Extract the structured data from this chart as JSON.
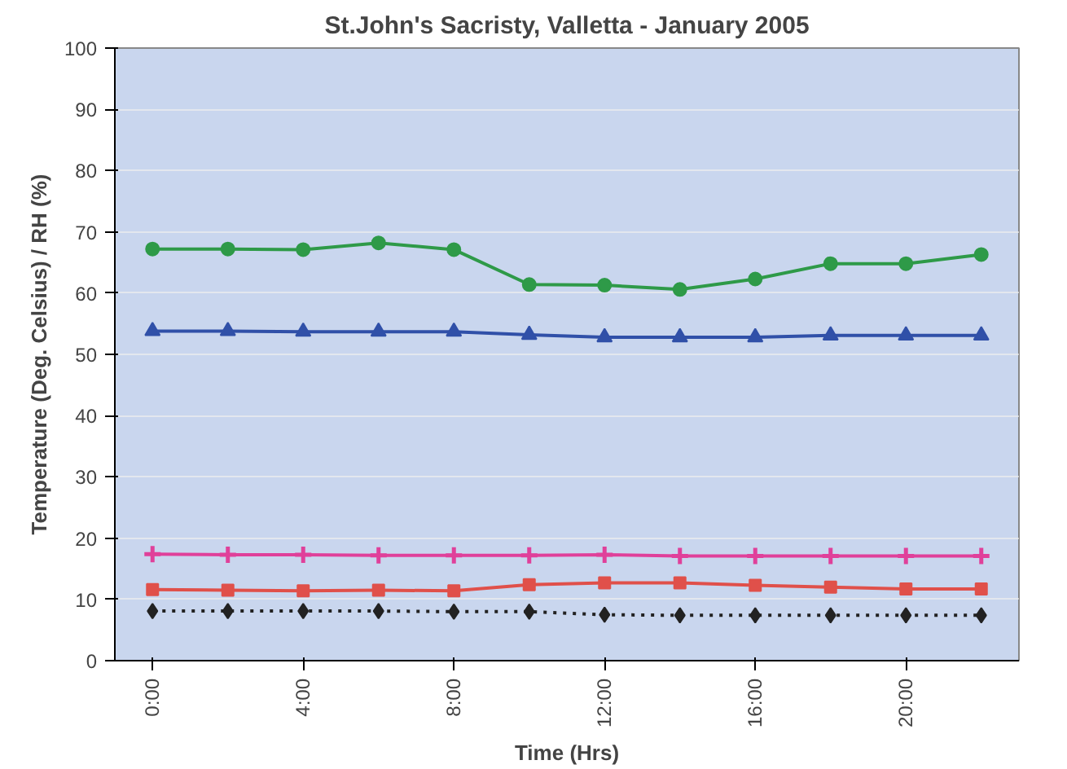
{
  "chart_data": {
    "type": "line",
    "title": "St.John's Sacristy, Valletta - January 2005",
    "xlabel": "Time (Hrs)",
    "ylabel": "Temperature (Deg. Celsius) / RH (%)",
    "categories": [
      "0:00",
      null,
      "4:00",
      null,
      "8:00",
      null,
      "12:00",
      null,
      "16:00",
      null,
      "20:00",
      null
    ],
    "series": [
      {
        "color": "#2e9a48",
        "marker": "circle",
        "line_style": "solid",
        "values": [
          67.2,
          67.2,
          67.1,
          68.2,
          67.1,
          61.4,
          61.3,
          60.6,
          62.3,
          64.8,
          64.8,
          66.3
        ]
      },
      {
        "color": "#3050a8",
        "marker": "triangle",
        "line_style": "solid",
        "values": [
          53.8,
          53.8,
          53.7,
          53.7,
          53.7,
          53.2,
          52.8,
          52.8,
          52.8,
          53.1,
          53.1,
          53.1
        ]
      },
      {
        "color": "#e0409a",
        "marker": "cross",
        "line_style": "solid",
        "values": [
          17.4,
          17.3,
          17.3,
          17.2,
          17.2,
          17.2,
          17.3,
          17.1,
          17.1,
          17.1,
          17.1,
          17.1
        ]
      },
      {
        "color": "#e0504a",
        "marker": "square",
        "line_style": "solid",
        "values": [
          11.6,
          11.5,
          11.4,
          11.5,
          11.4,
          12.4,
          12.7,
          12.7,
          12.3,
          12.0,
          11.7,
          11.7
        ]
      },
      {
        "color": "#222222",
        "marker": "diamond",
        "line_style": "dotted",
        "values": [
          8.1,
          8.1,
          8.1,
          8.1,
          8.0,
          8.0,
          7.5,
          7.4,
          7.4,
          7.4,
          7.4,
          7.4
        ]
      }
    ],
    "ylim": [
      0,
      100
    ],
    "yticks": [
      0,
      10,
      20,
      30,
      40,
      50,
      60,
      70,
      80,
      90,
      100
    ],
    "grid": "y"
  }
}
